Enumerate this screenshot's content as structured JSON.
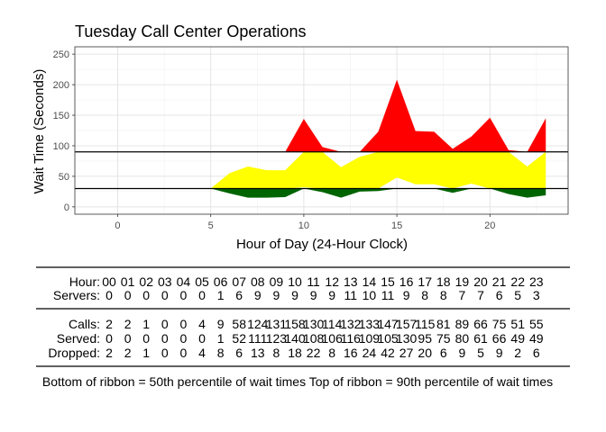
{
  "chart_data": {
    "type": "area",
    "title": "Tuesday Call Center Operations",
    "xlabel": "Hour of Day (24-Hour Clock)",
    "ylabel": "Wait Time (Seconds)",
    "xlim": [
      -2.3,
      24.2
    ],
    "ylim": [
      -12,
      262
    ],
    "x_ticks": [
      0,
      5,
      10,
      15,
      20
    ],
    "y_ticks": [
      0,
      50,
      100,
      150,
      200,
      250
    ],
    "grid": true,
    "colors": {
      "red": "#ff0000",
      "yellow": "#ffff00",
      "green": "#006400",
      "ref_line": "#000000"
    },
    "reference_lines": [
      30,
      90
    ],
    "x": [
      5,
      6,
      7,
      8,
      9,
      10,
      11,
      12,
      13,
      14,
      15,
      16,
      17,
      18,
      19,
      20,
      21,
      22,
      23
    ],
    "p50": [
      30,
      22,
      15,
      15,
      16,
      32,
      24,
      15,
      25,
      26,
      48,
      37,
      37,
      23,
      38,
      30,
      21,
      15,
      19
    ],
    "p90": [
      30,
      55,
      66,
      60,
      60,
      144,
      98,
      65,
      82,
      123,
      208,
      124,
      123,
      95,
      115,
      146,
      93,
      66,
      145
    ],
    "table": {
      "hour_label": "Hour:",
      "servers_label": "Servers:",
      "calls_label": "Calls:",
      "served_label": "Served:",
      "dropped_label": "Dropped:",
      "hours": [
        "00",
        "01",
        "02",
        "03",
        "04",
        "05",
        "06",
        "07",
        "08",
        "09",
        "10",
        "11",
        "12",
        "13",
        "14",
        "15",
        "16",
        "17",
        "18",
        "19",
        "20",
        "21",
        "22",
        "23"
      ],
      "servers": [
        "0",
        "0",
        "0",
        "0",
        "0",
        "0",
        "1",
        "6",
        "9",
        "9",
        "9",
        "9",
        "9",
        "11",
        "10",
        "11",
        "9",
        "8",
        "8",
        "7",
        "7",
        "6",
        "5",
        "3"
      ],
      "calls": [
        "2",
        "2",
        "1",
        "0",
        "0",
        "4",
        "9",
        "58",
        "124",
        "131",
        "158",
        "130",
        "114",
        "132",
        "133",
        "147",
        "157",
        "115",
        "81",
        "89",
        "66",
        "75",
        "51",
        "55"
      ],
      "served": [
        "0",
        "0",
        "0",
        "0",
        "0",
        "0",
        "1",
        "52",
        "111",
        "123",
        "140",
        "108",
        "106",
        "116",
        "109",
        "105",
        "130",
        "95",
        "75",
        "80",
        "61",
        "66",
        "49",
        "49"
      ],
      "dropped": [
        "2",
        "2",
        "1",
        "0",
        "0",
        "4",
        "8",
        "6",
        "13",
        "8",
        "18",
        "22",
        "8",
        "16",
        "24",
        "42",
        "27",
        "20",
        "6",
        "9",
        "5",
        "9",
        "2",
        "6"
      ]
    },
    "footnote": "Bottom of ribbon = 50th percentile of wait times    Top of ribbon = 90th percentile of wait times"
  }
}
